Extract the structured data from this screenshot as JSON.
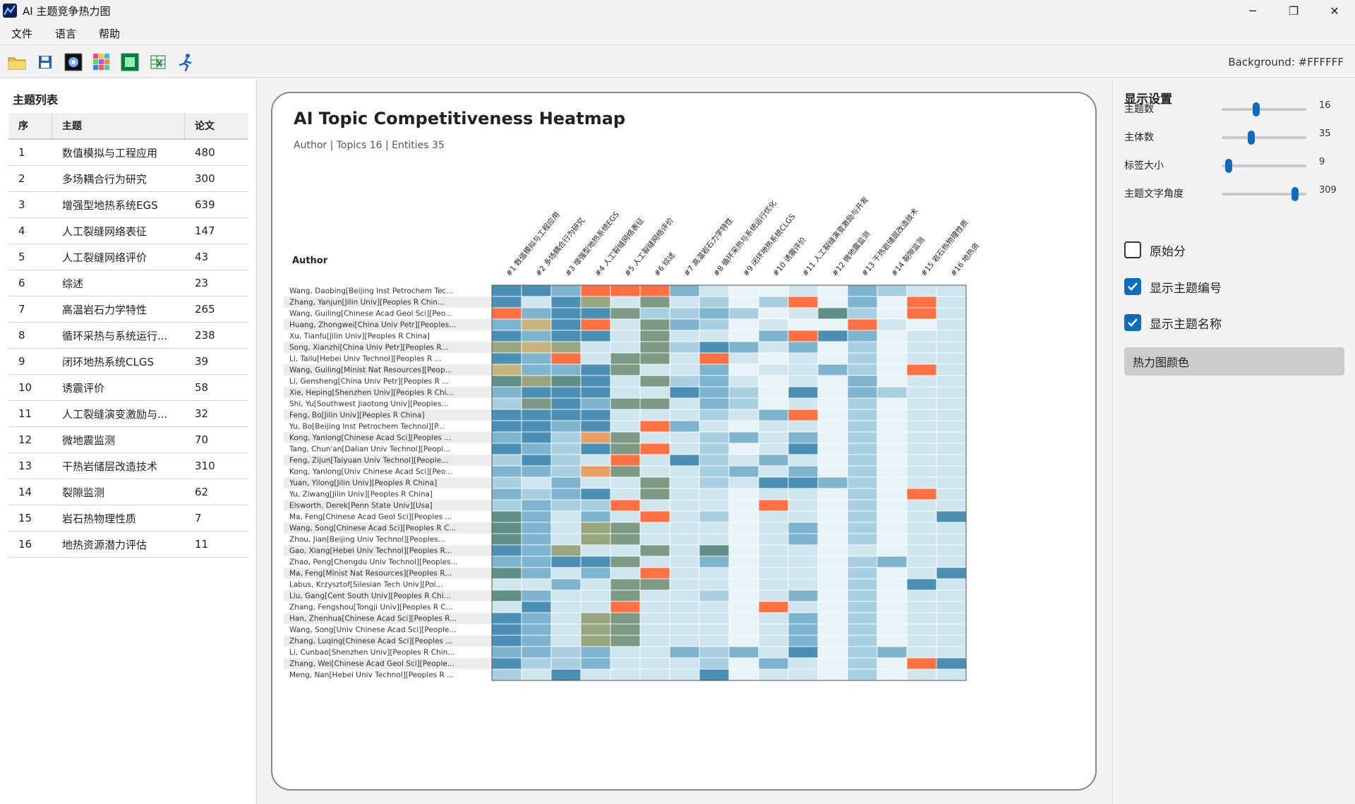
{
  "window": {
    "title": "AI 主题竞争热力图",
    "minimize": "─",
    "maximize": "❐",
    "close": "✕"
  },
  "menu": [
    "文件",
    "语言",
    "帮助"
  ],
  "toolbar": {
    "background_label": "Background: #FFFFFF",
    "icons": [
      "folder-icon",
      "save-icon",
      "dark-heatmap-icon",
      "palette-icon",
      "green-heatmap-icon",
      "excel-export-icon",
      "run-icon"
    ]
  },
  "left": {
    "title": "主题列表",
    "headers": [
      "序",
      "主题",
      "论文"
    ],
    "rows": [
      [
        "1",
        "数值模拟与工程应用",
        "480"
      ],
      [
        "2",
        "多场耦合行为研究",
        "300"
      ],
      [
        "3",
        "增强型地热系统EGS",
        "639"
      ],
      [
        "4",
        "人工裂缝网络表征",
        "147"
      ],
      [
        "5",
        "人工裂缝网络评价",
        "43"
      ],
      [
        "6",
        "综述",
        "23"
      ],
      [
        "7",
        "高温岩石力学特性",
        "265"
      ],
      [
        "8",
        "循环采热与系统运行...",
        "238"
      ],
      [
        "9",
        "闭环地热系统CLGS",
        "39"
      ],
      [
        "10",
        "诱震评价",
        "58"
      ],
      [
        "11",
        "人工裂缝演变激励与...",
        "32"
      ],
      [
        "12",
        "微地震监测",
        "70"
      ],
      [
        "13",
        "干热岩储层改造技术",
        "310"
      ],
      [
        "14",
        "裂隙监测",
        "62"
      ],
      [
        "15",
        "岩石热物理性质",
        "7"
      ],
      [
        "16",
        "地热资源潜力评估",
        "11"
      ]
    ]
  },
  "chart": {
    "title": "AI Topic Competitiveness Heatmap",
    "subtitle": "Author | Topics 16 | Entities 35",
    "row_axis_label": "Author"
  },
  "chart_data": {
    "type": "heatmap",
    "columns": [
      "#1 数值模拟与工程应用",
      "#2 多场耦合行为研究",
      "#3 增强型地热系统EGS",
      "#4 人工裂缝网络表征",
      "#5 人工裂缝网络评价",
      "#6 综述",
      "#7 高温岩石力学特性",
      "#8 循环采热与系统运行优化",
      "#9 闭环地热系统CLGS",
      "#10 诱震评价",
      "#11 人工裂缝演变激励与开发",
      "#12 微地震监测",
      "#13 干热岩储层改造技术",
      "#14 裂隙监测",
      "#15 岩石热物理性质",
      "#16 地热资"
    ],
    "rows": [
      "Wang, Daobing[Beijing Inst Petrochem Tec...",
      "Zhang, Yanjun[Jilin Univ][Peoples R Chin...",
      "Wang, Guiling[Chinese Acad Geol Sci][Peo...",
      "Huang, Zhongwei[China Univ Petr][Peoples...",
      "Xu, Tianfu[Jilin Univ][Peoples R China]",
      "Song, Xianzhi[China Univ Petr][Peoples R...",
      "Li, Tailu[Hebei Univ Technol][Peoples R ...",
      "Wang, Guiling[Minist Nat Resources][Peop...",
      "Li, Gensheng[China Univ Petr][Peoples R ...",
      "Xie, Heping[Shenzhen Univ][Peoples R Chi...",
      "Shi, Yu[Southwest Jiaotong Univ][Peoples...",
      "Feng, Bo[Jilin Univ][Peoples R China]",
      "Yu, Bo[Beijing Inst Petrochem Technol][P...",
      "Kong, Yanlong[Chinese Acad Sci][Peoples ...",
      "Tang, Chun'an[Dalian Univ Technol][Peopl...",
      "Feng, Zijun[Taiyuan Univ Technol][People...",
      "Kong, Yanlong[Univ Chinese Acad Sci][Peo...",
      "Yuan, Yilong[Jilin Univ][Peoples R China]",
      "Yu, Ziwang[Jilin Univ][Peoples R China]",
      "Elsworth, Derek[Penn State Univ][Usa]",
      "Ma, Feng[Chinese Acad Geol Sci][Peoples ...",
      "Wang, Song[Chinese Acad Sci][Peoples R C...",
      "Zhou, Jian[Beijing Univ Technol][Peoples...",
      "Gao, Xiang[Hebei Univ Technol][Peoples R...",
      "Zhao, Peng[Chengdu Univ Technol][Peoples...",
      "Ma, Feng[Minist Nat Resources][Peoples R...",
      "Labus, Krzysztof[Silesian Tech Univ][Pol...",
      "Liu, Gang[Cent South Univ][Peoples R Chi...",
      "Zhang, Fengshou[Tongji Univ][Peoples R C...",
      "Han, Zhenhua[Chinese Acad Sci][Peoples R...",
      "Wang, Song[Univ Chinese Acad Sci][People...",
      "Zhang, Luqing[Chinese Acad Sci][Peoples ...",
      "Li, Cunbao[Shenzhen Univ][Peoples R Chin...",
      "Zhang, Wei[Chinese Acad Geol Sci][People...",
      "Meng, Nan[Hebei Univ Technol][Peoples R ..."
    ],
    "palette": {
      "0": "#e8f4f8",
      "1": "#cfe6ef",
      "2": "#a9d0e0",
      "3": "#7fb4cf",
      "4": "#4b8fb5",
      "5": "#5f8f87",
      "6": "#7e9a84",
      "7": "#9aa67f",
      "8": "#c7b37b",
      "9": "#e8a066",
      "10": "#ff7043"
    },
    "levels": [
      [
        4,
        4,
        3,
        10,
        10,
        10,
        3,
        1,
        0,
        0,
        1,
        0,
        3,
        2,
        1,
        1
      ],
      [
        4,
        1,
        4,
        7,
        1,
        6,
        1,
        2,
        0,
        2,
        10,
        0,
        3,
        0,
        10,
        1
      ],
      [
        10,
        3,
        4,
        4,
        6,
        2,
        2,
        3,
        2,
        0,
        1,
        5,
        2,
        0,
        10,
        1
      ],
      [
        3,
        8,
        4,
        10,
        1,
        6,
        3,
        2,
        0,
        1,
        0,
        0,
        10,
        1,
        0,
        1
      ],
      [
        4,
        3,
        4,
        4,
        1,
        6,
        1,
        1,
        0,
        3,
        10,
        4,
        3,
        0,
        1,
        1
      ],
      [
        7,
        8,
        7,
        1,
        1,
        6,
        2,
        4,
        3,
        1,
        3,
        0,
        2,
        0,
        1,
        1
      ],
      [
        4,
        3,
        10,
        1,
        6,
        6,
        1,
        10,
        1,
        0,
        1,
        0,
        2,
        0,
        1,
        1
      ],
      [
        8,
        3,
        3,
        4,
        6,
        1,
        1,
        3,
        0,
        1,
        1,
        3,
        2,
        0,
        10,
        1
      ],
      [
        5,
        7,
        5,
        4,
        1,
        6,
        2,
        3,
        1,
        0,
        1,
        0,
        3,
        0,
        1,
        1
      ],
      [
        3,
        4,
        4,
        4,
        1,
        1,
        4,
        3,
        2,
        0,
        4,
        0,
        3,
        2,
        1,
        1
      ],
      [
        2,
        6,
        4,
        3,
        6,
        6,
        1,
        3,
        2,
        0,
        1,
        0,
        2,
        0,
        1,
        1
      ],
      [
        4,
        4,
        4,
        4,
        1,
        1,
        1,
        2,
        1,
        3,
        10,
        0,
        2,
        0,
        1,
        1
      ],
      [
        4,
        4,
        3,
        4,
        1,
        10,
        3,
        1,
        0,
        1,
        1,
        0,
        2,
        0,
        1,
        1
      ],
      [
        3,
        4,
        2,
        9,
        6,
        1,
        1,
        2,
        3,
        1,
        3,
        0,
        2,
        0,
        1,
        1
      ],
      [
        4,
        3,
        2,
        4,
        6,
        10,
        1,
        2,
        0,
        1,
        4,
        0,
        2,
        0,
        1,
        1
      ],
      [
        2,
        4,
        2,
        1,
        10,
        1,
        4,
        2,
        1,
        3,
        1,
        0,
        2,
        0,
        1,
        1
      ],
      [
        3,
        3,
        2,
        9,
        6,
        1,
        1,
        2,
        3,
        1,
        3,
        0,
        2,
        0,
        1,
        1
      ],
      [
        2,
        1,
        3,
        1,
        1,
        6,
        1,
        2,
        1,
        4,
        4,
        3,
        2,
        0,
        1,
        1
      ],
      [
        3,
        2,
        3,
        4,
        1,
        6,
        1,
        1,
        0,
        1,
        1,
        0,
        2,
        0,
        10,
        1
      ],
      [
        2,
        3,
        2,
        2,
        10,
        1,
        1,
        1,
        0,
        10,
        1,
        0,
        2,
        0,
        1,
        1
      ],
      [
        5,
        3,
        1,
        3,
        1,
        10,
        1,
        2,
        0,
        1,
        1,
        0,
        2,
        0,
        1,
        4
      ],
      [
        5,
        3,
        1,
        7,
        6,
        1,
        1,
        1,
        0,
        1,
        3,
        0,
        2,
        0,
        1,
        1
      ],
      [
        5,
        3,
        1,
        7,
        6,
        1,
        1,
        1,
        0,
        1,
        3,
        0,
        2,
        0,
        1,
        1
      ],
      [
        4,
        3,
        7,
        1,
        1,
        6,
        1,
        5,
        0,
        1,
        1,
        0,
        1,
        0,
        1,
        1
      ],
      [
        3,
        3,
        4,
        4,
        6,
        1,
        1,
        3,
        0,
        1,
        1,
        0,
        2,
        3,
        1,
        1
      ],
      [
        5,
        3,
        1,
        3,
        1,
        10,
        1,
        1,
        0,
        1,
        1,
        0,
        2,
        0,
        1,
        4
      ],
      [
        1,
        1,
        3,
        1,
        6,
        6,
        1,
        1,
        0,
        1,
        1,
        0,
        2,
        0,
        4,
        1
      ],
      [
        5,
        3,
        1,
        1,
        6,
        1,
        1,
        2,
        0,
        1,
        3,
        0,
        2,
        0,
        1,
        1
      ],
      [
        1,
        4,
        1,
        1,
        10,
        1,
        1,
        1,
        0,
        10,
        1,
        0,
        2,
        0,
        1,
        1
      ],
      [
        4,
        3,
        1,
        7,
        6,
        1,
        1,
        1,
        0,
        1,
        3,
        0,
        2,
        0,
        1,
        1
      ],
      [
        4,
        3,
        1,
        7,
        6,
        1,
        1,
        1,
        0,
        1,
        3,
        0,
        2,
        0,
        1,
        1
      ],
      [
        4,
        3,
        1,
        7,
        6,
        1,
        1,
        1,
        0,
        1,
        3,
        0,
        2,
        0,
        1,
        1
      ],
      [
        3,
        3,
        2,
        3,
        1,
        1,
        3,
        2,
        3,
        1,
        4,
        0,
        2,
        3,
        1,
        1
      ],
      [
        4,
        2,
        2,
        3,
        1,
        1,
        1,
        2,
        0,
        3,
        1,
        0,
        2,
        0,
        10,
        4
      ],
      [
        2,
        1,
        4,
        1,
        1,
        1,
        1,
        4,
        0,
        1,
        1,
        0,
        2,
        0,
        1,
        1
      ]
    ]
  },
  "settings": {
    "title": "显示设置",
    "sliders": [
      {
        "label": "主题数",
        "value": "16",
        "fraction": 0.38
      },
      {
        "label": "主体数",
        "value": "35",
        "fraction": 0.32
      },
      {
        "label": "标签大小",
        "value": "9",
        "fraction": 0.04
      },
      {
        "label": "主题文字角度",
        "value": "309",
        "fraction": 0.86
      }
    ],
    "checkboxes": [
      {
        "label": "原始分",
        "checked": false
      },
      {
        "label": "显示主题编号",
        "checked": true
      },
      {
        "label": "显示主题名称",
        "checked": true
      }
    ],
    "color_button": "热力图颜色"
  }
}
